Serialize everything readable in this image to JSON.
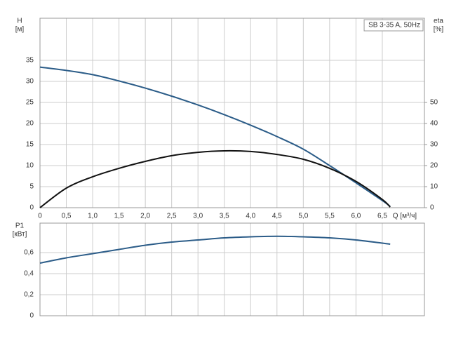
{
  "chart_data": [
    {
      "type": "line",
      "y_label": "H",
      "y_unit": "[м]",
      "y2_label": "eta",
      "y2_unit": "[%]",
      "x_label": "Q [м³/ч]",
      "legend": "SB 3-35 A, 50Hz",
      "legend_position": "upper right",
      "grid": true,
      "x": [
        0,
        0.5,
        1.0,
        1.5,
        2.0,
        2.5,
        3.0,
        3.5,
        4.0,
        4.5,
        5.0,
        5.5,
        6.0,
        6.5,
        6.65
      ],
      "series": [
        {
          "name": "H",
          "color": "#2b5c88",
          "values": [
            33.4,
            32.6,
            31.6,
            30.1,
            28.4,
            26.5,
            24.4,
            22.1,
            19.6,
            16.9,
            13.9,
            10.0,
            5.9,
            1.7,
            0.3
          ]
        },
        {
          "name": "eta",
          "color": "#111111",
          "axis": "y2",
          "values": [
            0,
            9.3,
            14.7,
            18.7,
            22,
            24.7,
            26.3,
            27,
            26.7,
            25.3,
            23,
            18.7,
            12.5,
            3.9,
            0.3
          ]
        }
      ],
      "xlim": [
        0,
        7.3
      ],
      "xticks": [
        0,
        {
          "value": 0.5,
          "label": "0,5"
        },
        {
          "value": 1.0,
          "label": "1,0"
        },
        {
          "value": 1.5,
          "label": "1,5"
        },
        {
          "value": 2.0,
          "label": "2,0"
        },
        {
          "value": 2.5,
          "label": "2,5"
        },
        {
          "value": 3.0,
          "label": "3,0"
        },
        {
          "value": 3.5,
          "label": "3,5"
        },
        {
          "value": 4.0,
          "label": "4,0"
        },
        {
          "value": 4.5,
          "label": "4,5"
        },
        {
          "value": 5.0,
          "label": "5,0"
        },
        {
          "value": 5.5,
          "label": "5,5"
        },
        {
          "value": 6.0,
          "label": "6,0"
        },
        {
          "value": 6.5,
          "label": "6,5"
        }
      ],
      "ylim": [
        0,
        45
      ],
      "yticks": [
        0,
        5,
        10,
        15,
        20,
        25,
        30,
        35
      ],
      "y2lim": [
        0,
        90
      ],
      "y2ticks": [
        0,
        10,
        20,
        30,
        40,
        50
      ]
    },
    {
      "type": "line",
      "y_label": "P1",
      "y_unit": "[кВт]",
      "grid": true,
      "x": [
        0,
        0.5,
        1.0,
        1.5,
        2.0,
        2.5,
        3.0,
        3.5,
        4.0,
        4.5,
        5.0,
        5.5,
        6.0,
        6.5,
        6.65
      ],
      "series": [
        {
          "name": "P1",
          "color": "#2b5c88",
          "values": [
            0.5,
            0.55,
            0.59,
            0.63,
            0.67,
            0.7,
            0.72,
            0.74,
            0.75,
            0.755,
            0.75,
            0.74,
            0.72,
            0.69,
            0.68
          ]
        }
      ],
      "xlim": [
        0,
        7.3
      ],
      "ylim": [
        0,
        0.88
      ],
      "yticks": [
        0,
        {
          "value": 0.2,
          "label": "0,2"
        },
        {
          "value": 0.4,
          "label": "0,4"
        },
        {
          "value": 0.6,
          "label": "0,6"
        }
      ]
    }
  ]
}
